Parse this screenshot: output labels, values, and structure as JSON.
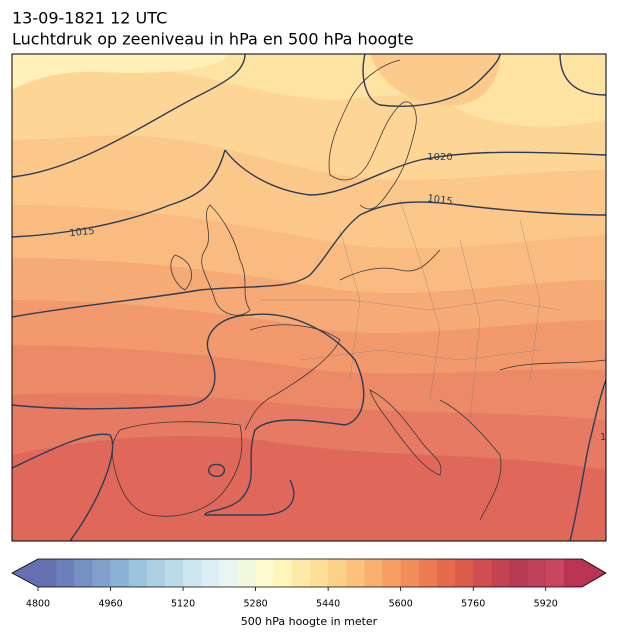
{
  "header": {
    "title": "13-09-1821 12 UTC",
    "subtitle": "Luchtdruk op zeeniveau in hPa en 500 hPa hoogte"
  },
  "map": {
    "contour_labels": [
      "1020",
      "1015",
      "1015",
      "1"
    ]
  },
  "colorbar": {
    "label": "500 hPa hoogte in meter",
    "lim": [
      4800,
      6000
    ],
    "ticks": [
      4800,
      4960,
      5120,
      5280,
      5440,
      5600,
      5760,
      5920
    ],
    "colors": [
      "#6470b0",
      "#6b7fba",
      "#7590c3",
      "#80a1cb",
      "#8cb2d5",
      "#9bc3de",
      "#accfe4",
      "#bcdbea",
      "#cde6ef",
      "#dcedf3",
      "#e9f5f0",
      "#f3f9df",
      "#fbfbcf",
      "#fff5bc",
      "#feeaa8",
      "#fede98",
      "#fdd089",
      "#fcc27b",
      "#fab06e",
      "#f79e63",
      "#f38d5a",
      "#ee7c53",
      "#e66b4e",
      "#dc5c4c",
      "#d04e4f",
      "#c34352",
      "#b83a55",
      "#c03f5a",
      "#c94560",
      "#b93452"
    ]
  }
}
